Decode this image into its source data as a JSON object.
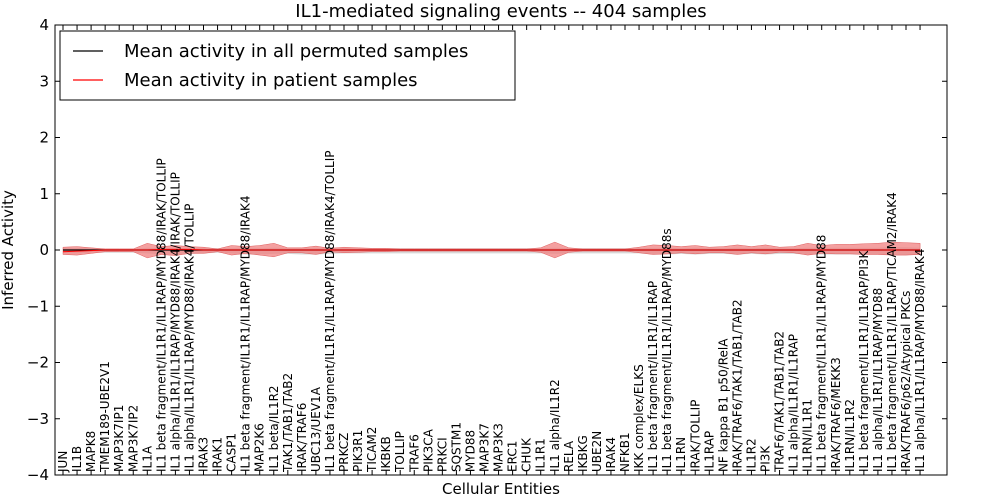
{
  "chart_data": {
    "type": "line",
    "title": "IL1-mediated signaling events -- 404 samples",
    "xlabel": "Cellular Entities",
    "ylabel": "Inferred Activity",
    "ylim": [
      -4,
      4
    ],
    "yticks": [
      4,
      3,
      2,
      1,
      0,
      -1,
      -2,
      -3,
      -4
    ],
    "ytick_labels": [
      "4",
      "3",
      "2",
      "1",
      "0",
      "−1",
      "−2",
      "−3",
      "−4"
    ],
    "grid": false,
    "legend_position": "top-left",
    "categories": [
      "JUN",
      "IL1B",
      "MAPK8",
      "TMEM189-UBE2V1",
      "MAP3K7IP1",
      "MAP3K7IP2",
      "IL1A",
      "IL1 beta fragment/IL1R1/IL1RAP/MYD88/IRAK/TOLLIP",
      "IL1 alpha/IL1R1/IL1RAP/MYD88/IRAK4/IRAK/TOLLIP",
      "IL1 alpha/IL1R1/IL1RAP/MYD88/IRAK4/TOLLIP",
      "IRAK3",
      "IRAK1",
      "CASP1",
      "IL1 beta fragment/IL1R1/IL1RAP/MYD88/IRAK4",
      "MAP2K6",
      "IL1 beta/IL1R2",
      "TAK1/TAB1/TAB2",
      "IRAK/TRAF6",
      "UBC13/UEV1A",
      "IL1 beta fragment/IL1R1/IL1RAP/MYD88/IRAK4/TOLLIP",
      "PRKCZ",
      "PIK3R1",
      "TICAM2",
      "IKBKB",
      "TOLLIP",
      "TRAF6",
      "PIK3CA",
      "PRKCI",
      "SQSTM1",
      "MYD88",
      "MAP3K7",
      "MAP3K3",
      "ERC1",
      "CHUK",
      "IL1R1",
      "IL1 alpha/IL1R2",
      "RELA",
      "IKBKG",
      "UBE2N",
      "IRAK4",
      "NFKB1",
      "IKK complex/ELKS",
      "IL1 beta fragment/IL1R1/IL1RAP",
      "IL1 beta fragment/IL1R1/IL1RAP/MYD88s",
      "IL1RN",
      "IRAK/TOLLIP",
      "IL1RAP",
      "NF kappa B1 p50/RelA",
      "IRAK/TRAF6/TAK1/TAB1/TAB2",
      "IL1R2",
      "PI3K",
      "TRAF6/TAK1/TAB1/TAB2",
      "IL1 alpha/IL1R1/IL1RAP",
      "IL1RN/IL1R1",
      "IL1 beta fragment/IL1R1/IL1RAP/MYD88",
      "IRAK/TRAF6/MEKK3",
      "IL1RN/IL1R2",
      "IL1 beta fragment/IL1R1/IL1RAP/PI3K",
      "IL1 alpha/IL1R1/IL1RAP/MYD88",
      "IL1 beta fragment/IL1R1/IL1RAP/TICAM2/IRAK4",
      "IRAK/TRAF6/p62/Atypical PKCs",
      "IL1 alpha/IL1R1/IL1RAP/MYD88/IRAK4"
    ],
    "series": [
      {
        "name": "Mean activity in all permuted samples",
        "color": "#000000",
        "values": [
          0,
          0,
          0,
          0,
          0,
          0,
          0,
          0,
          0,
          0,
          0,
          0,
          0,
          0,
          0,
          0,
          0,
          0,
          0,
          0,
          0,
          0,
          0,
          0,
          0,
          0,
          0,
          0,
          0,
          0,
          0,
          0,
          0,
          0,
          0,
          0,
          0,
          0,
          0,
          0,
          0,
          0,
          0,
          0,
          0,
          0,
          0,
          0,
          0,
          0,
          0,
          0,
          0,
          0,
          0,
          0,
          0,
          0,
          0,
          0,
          0,
          0
        ]
      },
      {
        "name": "Mean activity in patient samples",
        "color": "#ff0000",
        "values": [
          -0.03,
          -0.02,
          -0.01,
          0,
          0,
          0,
          0,
          0.01,
          0.01,
          0.01,
          0,
          0,
          0,
          0,
          0,
          0,
          0,
          0,
          0,
          0,
          0,
          0,
          0,
          0,
          0,
          0,
          0,
          0,
          0,
          0,
          0,
          0,
          0,
          0,
          0,
          0,
          0,
          0,
          0,
          0,
          0,
          0,
          0,
          0,
          0,
          0,
          0,
          0,
          0,
          0,
          0,
          0,
          0,
          0,
          0,
          0,
          0,
          0,
          0,
          0,
          0,
          0
        ],
        "band_upper": [
          0.05,
          0.06,
          0.04,
          0.02,
          0.02,
          0.02,
          0.12,
          0.06,
          0.08,
          0.06,
          0.05,
          0.02,
          0.08,
          0.06,
          0.08,
          0.12,
          0.04,
          0.04,
          0.07,
          0.03,
          0.05,
          0.04,
          0.03,
          0.03,
          0.02,
          0.02,
          0.02,
          0.02,
          0.02,
          0.02,
          0.02,
          0.02,
          0.02,
          0.02,
          0.04,
          0.14,
          0.04,
          0.02,
          0.02,
          0.02,
          0.02,
          0.05,
          0.09,
          0.08,
          0.06,
          0.08,
          0.05,
          0.06,
          0.09,
          0.06,
          0.09,
          0.05,
          0.06,
          0.12,
          0.08,
          0.1,
          0.1,
          0.11,
          0.12,
          0.14,
          0.13,
          0.12
        ],
        "band_lower": [
          -0.08,
          -0.09,
          -0.06,
          -0.03,
          -0.03,
          -0.03,
          -0.14,
          -0.08,
          -0.1,
          -0.06,
          -0.06,
          -0.03,
          -0.09,
          -0.06,
          -0.09,
          -0.12,
          -0.05,
          -0.05,
          -0.08,
          -0.03,
          -0.05,
          -0.04,
          -0.03,
          -0.03,
          -0.02,
          -0.02,
          -0.02,
          -0.02,
          -0.02,
          -0.02,
          -0.02,
          -0.02,
          -0.02,
          -0.02,
          -0.04,
          -0.14,
          -0.04,
          -0.02,
          -0.02,
          -0.02,
          -0.02,
          -0.05,
          -0.08,
          -0.07,
          -0.05,
          -0.07,
          -0.05,
          -0.05,
          -0.08,
          -0.05,
          -0.07,
          -0.04,
          -0.05,
          -0.09,
          -0.06,
          -0.07,
          -0.07,
          -0.08,
          -0.08,
          -0.09,
          -0.09,
          -0.08
        ]
      }
    ],
    "permuted_band_upper": [
      0.03,
      0.03,
      0.03,
      0.02,
      0.02,
      0.02,
      0.04,
      0.03,
      0.03,
      0.03,
      0.03,
      0.03,
      0.03,
      0.03,
      0.03,
      0.04,
      0.03,
      0.03,
      0.03,
      0.03,
      0.03,
      0.03,
      0.03,
      0.03,
      0.03,
      0.03,
      0.03,
      0.03,
      0.03,
      0.03,
      0.03,
      0.03,
      0.03,
      0.03,
      0.03,
      0.04,
      0.03,
      0.03,
      0.03,
      0.03,
      0.03,
      0.03,
      0.04,
      0.04,
      0.03,
      0.04,
      0.03,
      0.03,
      0.04,
      0.03,
      0.04,
      0.03,
      0.03,
      0.04,
      0.04,
      0.04,
      0.04,
      0.04,
      0.04,
      0.05,
      0.05,
      0.04
    ],
    "permuted_band_lower": [
      -0.06,
      -0.06,
      -0.05,
      -0.05,
      -0.05,
      -0.05,
      -0.06,
      -0.08,
      -0.08,
      -0.07,
      -0.06,
      -0.05,
      -0.06,
      -0.08,
      -0.08,
      -0.07,
      -0.07,
      -0.08,
      -0.08,
      -0.07,
      -0.06,
      -0.06,
      -0.06,
      -0.06,
      -0.06,
      -0.06,
      -0.06,
      -0.06,
      -0.06,
      -0.06,
      -0.06,
      -0.06,
      -0.06,
      -0.06,
      -0.06,
      -0.07,
      -0.06,
      -0.06,
      -0.06,
      -0.06,
      -0.06,
      -0.06,
      -0.08,
      -0.08,
      -0.07,
      -0.08,
      -0.07,
      -0.07,
      -0.08,
      -0.07,
      -0.08,
      -0.07,
      -0.07,
      -0.08,
      -0.08,
      -0.08,
      -0.08,
      -0.08,
      -0.08,
      -0.09,
      -0.09,
      -0.08
    ]
  },
  "colors": {
    "patient_band": "#f08080",
    "permuted_band": "#c8c8c8"
  }
}
